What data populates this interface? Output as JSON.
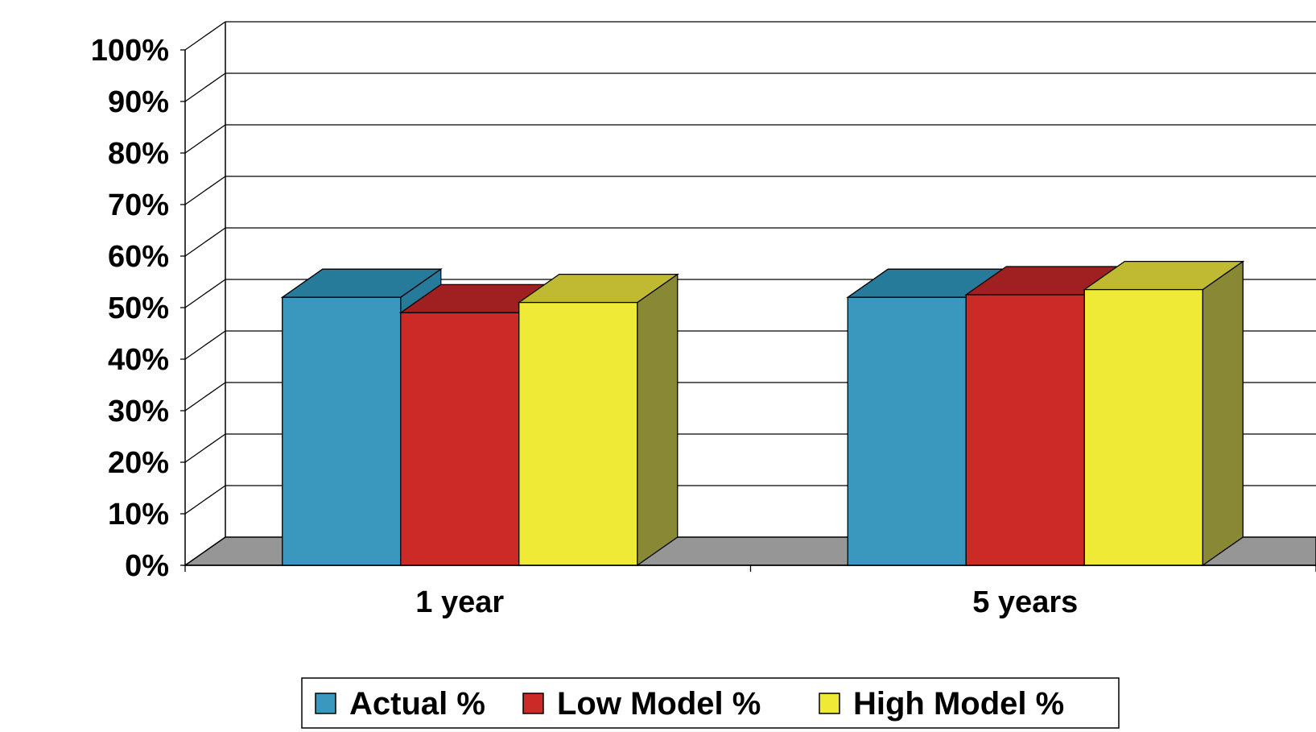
{
  "chart_data": {
    "type": "bar",
    "style": "3d-clustered-column",
    "categories": [
      "1 year",
      "5 years"
    ],
    "series": [
      {
        "name": "Actual %",
        "values": [
          52,
          52
        ],
        "color": "#3A98BE",
        "top_color": "#257B99"
      },
      {
        "name": "Low Model %",
        "values": [
          49,
          52.5
        ],
        "color": "#CC2A27",
        "top_color": "#A01F21"
      },
      {
        "name": "High Model %",
        "values": [
          51,
          53.5
        ],
        "color": "#EEEA35",
        "top_color": "#BFBA31",
        "side_color": "#898935"
      }
    ],
    "ylim": [
      0,
      100
    ],
    "yticks": [
      "0%",
      "10%",
      "20%",
      "30%",
      "40%",
      "50%",
      "60%",
      "70%",
      "80%",
      "90%",
      "100%"
    ],
    "title": "",
    "xlabel": "",
    "ylabel": "",
    "grid": true,
    "legend": "bottom",
    "floor_color": "#969696"
  }
}
